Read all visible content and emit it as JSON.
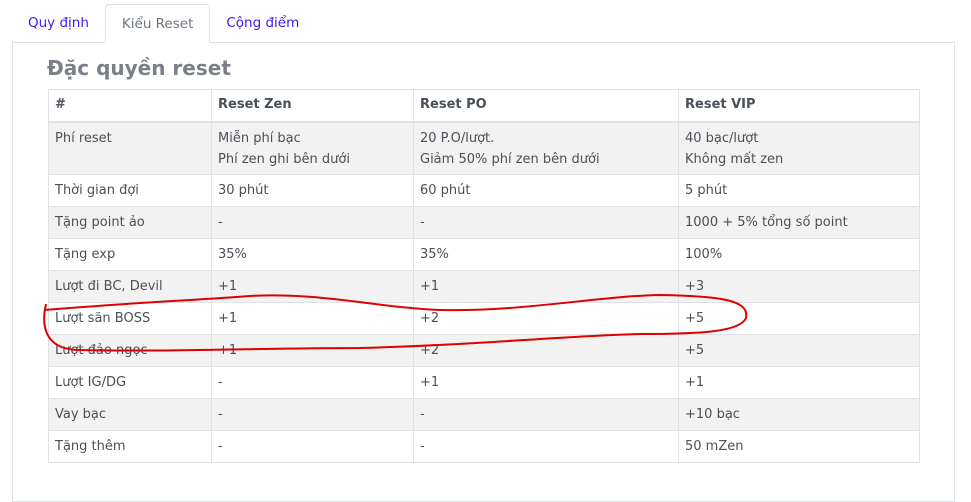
{
  "tabs": [
    {
      "label": "Quy định",
      "active": false
    },
    {
      "label": "Kiểu Reset",
      "active": true
    },
    {
      "label": "Cộng điểm",
      "active": false
    }
  ],
  "section_title": "Đặc quyền reset",
  "table": {
    "headers": [
      "#",
      "Reset Zen",
      "Reset PO",
      "Reset VIP"
    ],
    "rows": [
      {
        "label": "Phí reset",
        "zen": [
          "Miễn phí bạc",
          "Phí zen ghi bên dưới"
        ],
        "po": [
          "20 P.O/lượt.",
          "Giảm 50% phí zen bên dưới"
        ],
        "vip": [
          "40 bạc/lượt",
          "Không mất zen"
        ]
      },
      {
        "label": "Thời gian đợi",
        "zen": "30 phút",
        "po": "60 phút",
        "vip": "5 phút"
      },
      {
        "label": "Tặng point ảo",
        "zen": "-",
        "po": "-",
        "vip": "1000 + 5% tổng số point"
      },
      {
        "label": "Tặng exp",
        "zen": "35%",
        "po": "35%",
        "vip": "100%"
      },
      {
        "label": "Lượt đi BC, Devil",
        "zen": "+1",
        "po": "+1",
        "vip": "+3"
      },
      {
        "label": "Lượt săn BOSS",
        "zen": "+1",
        "po": "+2",
        "vip": "+5"
      },
      {
        "label": "Lượt đảo ngọc",
        "zen": "+1",
        "po": "+2",
        "vip": "+5"
      },
      {
        "label": "Lượt IG/DG",
        "zen": "-",
        "po": "+1",
        "vip": "+1"
      },
      {
        "label": "Vay bạc",
        "zen": "-",
        "po": "-",
        "vip": "+10 bạc"
      },
      {
        "label": "Tặng thêm",
        "zen": "-",
        "po": "-",
        "vip": "50 mZen"
      }
    ]
  },
  "annotation_color": "#e00000"
}
